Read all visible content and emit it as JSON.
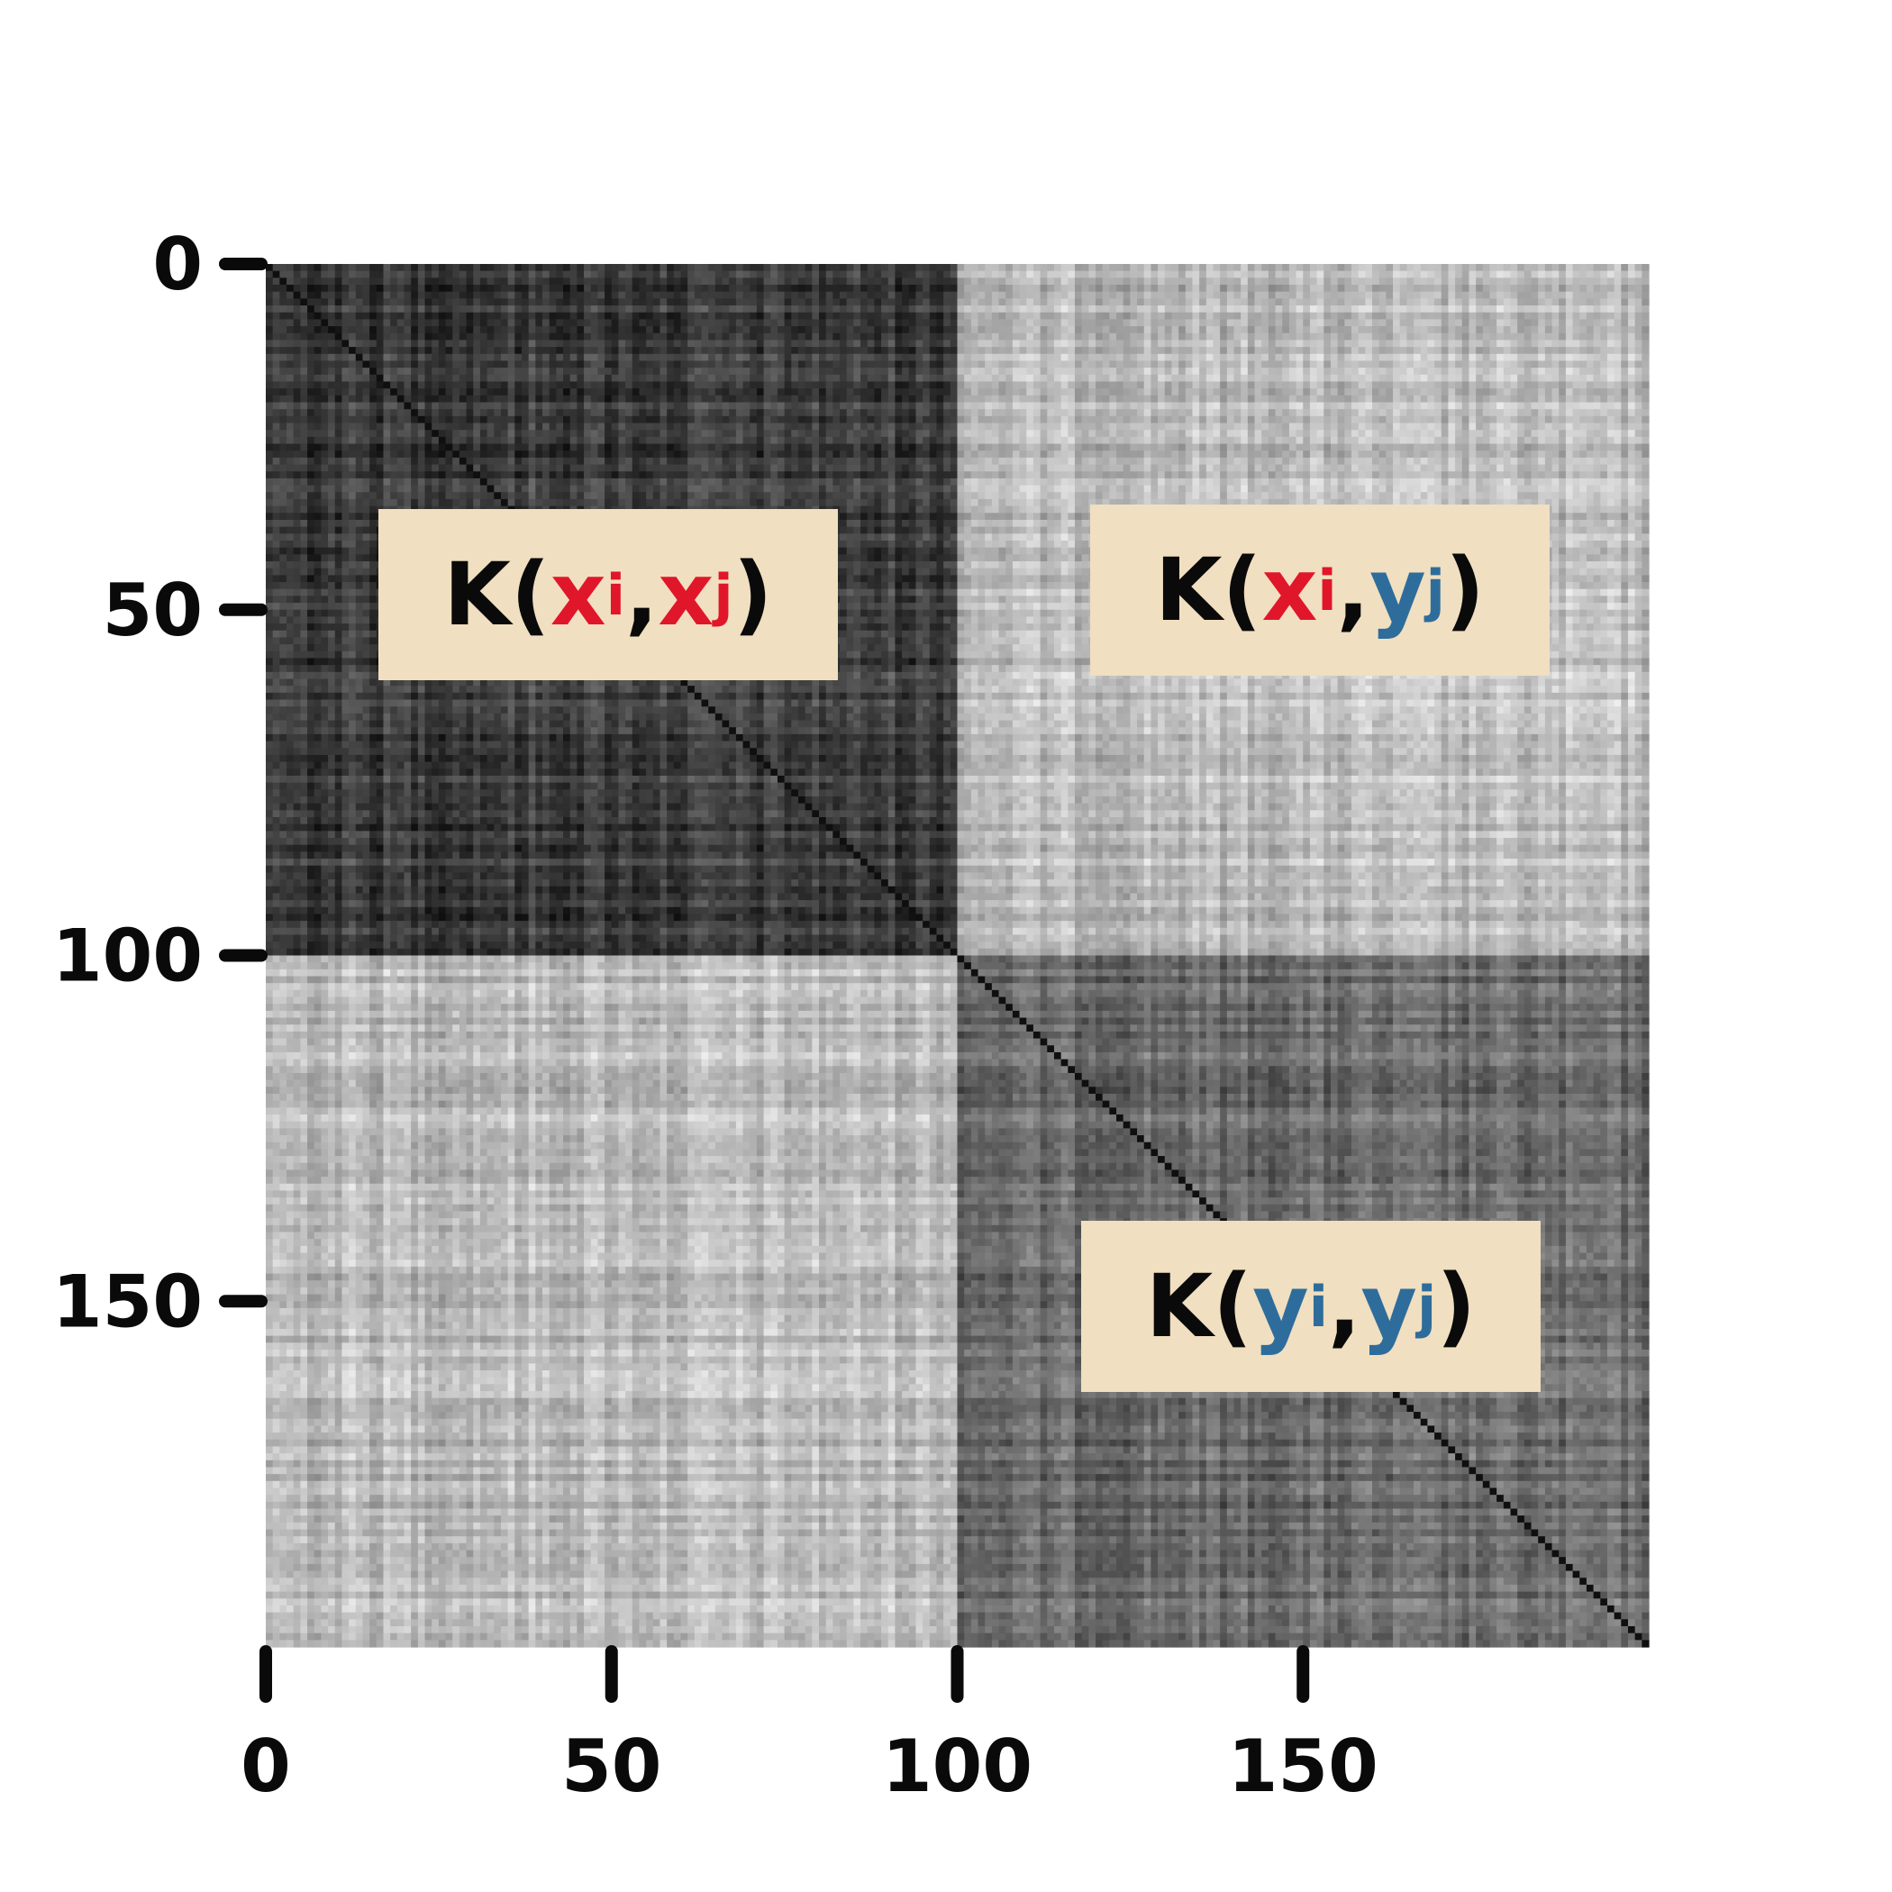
{
  "chart_data": {
    "type": "heatmap",
    "colormap": "greys",
    "matrix_size": 200,
    "grid": false,
    "xticks": [
      "0",
      "50",
      "100",
      "150"
    ],
    "yticks": [
      "0",
      "50",
      "100",
      "150"
    ],
    "blocks": [
      {
        "rows": [
          0,
          100
        ],
        "cols": [
          0,
          100
        ],
        "mean_similarity": 0.8
      },
      {
        "rows": [
          0,
          100
        ],
        "cols": [
          100,
          200
        ],
        "mean_similarity": 0.25
      },
      {
        "rows": [
          100,
          200
        ],
        "cols": [
          0,
          100
        ],
        "mean_similarity": 0.25
      },
      {
        "rows": [
          100,
          200
        ],
        "cols": [
          100,
          200
        ],
        "mean_similarity": 0.6
      }
    ],
    "annotations": [
      {
        "name": "kxx",
        "K": "K(",
        "a": "x",
        "a_sub": "i",
        "sep": ",",
        "b": "x",
        "b_sub": "j",
        "close": ")",
        "a_color": "#e0162b",
        "b_color": "#e0162b"
      },
      {
        "name": "kxy",
        "K": "K(",
        "a": "x",
        "a_sub": "i",
        "sep": ",",
        "b": "y",
        "b_sub": "j",
        "close": ")",
        "a_color": "#e0162b",
        "b_color": "#2e6d9b"
      },
      {
        "name": "kyy",
        "K": "K(",
        "a": "y",
        "a_sub": "i",
        "sep": ",",
        "b": "y",
        "b_sub": "j",
        "close": ")",
        "a_color": "#2e6d9b",
        "b_color": "#2e6d9b"
      }
    ]
  }
}
